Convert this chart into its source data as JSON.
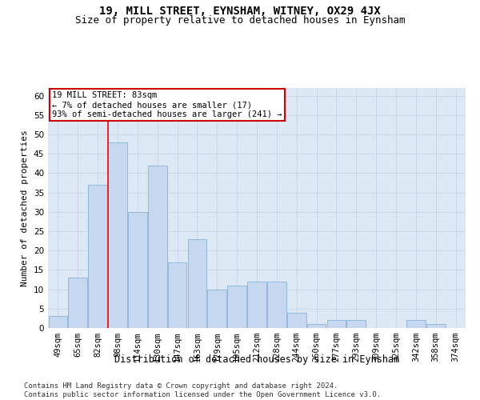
{
  "title": "19, MILL STREET, EYNSHAM, WITNEY, OX29 4JX",
  "subtitle": "Size of property relative to detached houses in Eynsham",
  "xlabel": "Distribution of detached houses by size in Eynsham",
  "ylabel": "Number of detached properties",
  "categories": [
    "49sqm",
    "65sqm",
    "82sqm",
    "98sqm",
    "114sqm",
    "130sqm",
    "147sqm",
    "163sqm",
    "179sqm",
    "195sqm",
    "212sqm",
    "228sqm",
    "244sqm",
    "260sqm",
    "277sqm",
    "293sqm",
    "309sqm",
    "325sqm",
    "342sqm",
    "358sqm",
    "374sqm"
  ],
  "values": [
    3,
    13,
    37,
    48,
    30,
    42,
    17,
    23,
    10,
    11,
    12,
    12,
    4,
    1,
    2,
    2,
    0,
    0,
    2,
    1,
    0
  ],
  "bar_color": "#c5d8ef",
  "bar_edge_color": "#7aaad0",
  "grid_color": "#c8d8e8",
  "background_color": "#dce8f4",
  "red_line_x": 2.5,
  "annotation_text": "19 MILL STREET: 83sqm\n← 7% of detached houses are smaller (17)\n93% of semi-detached houses are larger (241) →",
  "annotation_box_color": "#ffffff",
  "annotation_box_edge": "#cc0000",
  "ylim": [
    0,
    62
  ],
  "yticks": [
    0,
    5,
    10,
    15,
    20,
    25,
    30,
    35,
    40,
    45,
    50,
    55,
    60
  ],
  "footer": "Contains HM Land Registry data © Crown copyright and database right 2024.\nContains public sector information licensed under the Open Government Licence v3.0.",
  "title_fontsize": 10,
  "subtitle_fontsize": 9,
  "xlabel_fontsize": 8.5,
  "ylabel_fontsize": 8,
  "tick_fontsize": 7.5,
  "annotation_fontsize": 7.5,
  "footer_fontsize": 6.5
}
